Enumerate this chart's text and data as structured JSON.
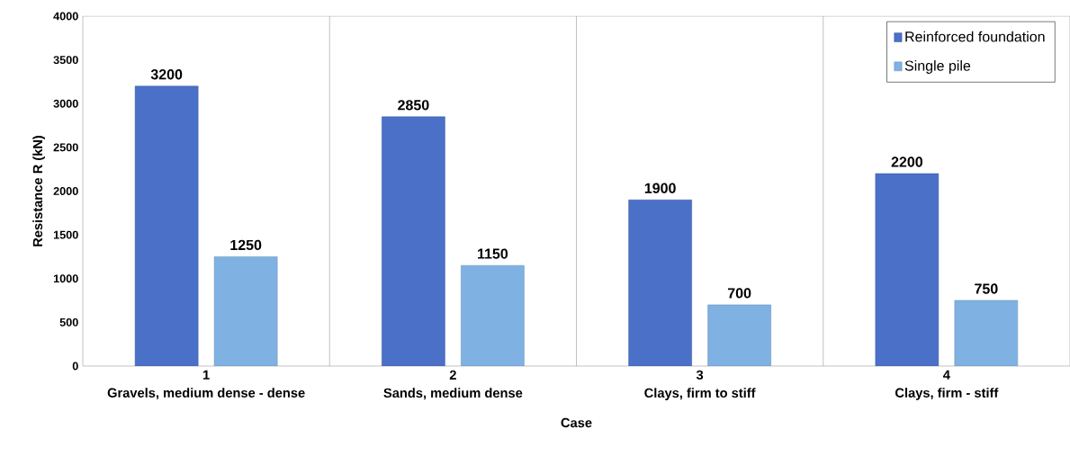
{
  "chart_data": {
    "type": "bar",
    "xlabel": "Case",
    "ylabel": "Resistance R (kN)",
    "categories": [
      "1",
      "2",
      "3",
      "4"
    ],
    "annotations": [
      "Gravels, medium dense - dense",
      "Sands, medium dense",
      "Clays, firm to stiff",
      "Clays, firm - stiff"
    ],
    "series": [
      {
        "name": "Reinforced foundation",
        "color": "#4a70c8",
        "values": [
          3200,
          2850,
          1900,
          2200
        ]
      },
      {
        "name": "Single pile",
        "color": "#7fb1e3",
        "values": [
          1250,
          1150,
          700,
          750
        ]
      }
    ],
    "ylim": [
      0,
      4000
    ],
    "yticks": [
      0,
      500,
      1000,
      1500,
      2000,
      2500,
      3000,
      3500,
      4000
    ],
    "grid": "x",
    "legend": "top right",
    "data_labels": true
  }
}
